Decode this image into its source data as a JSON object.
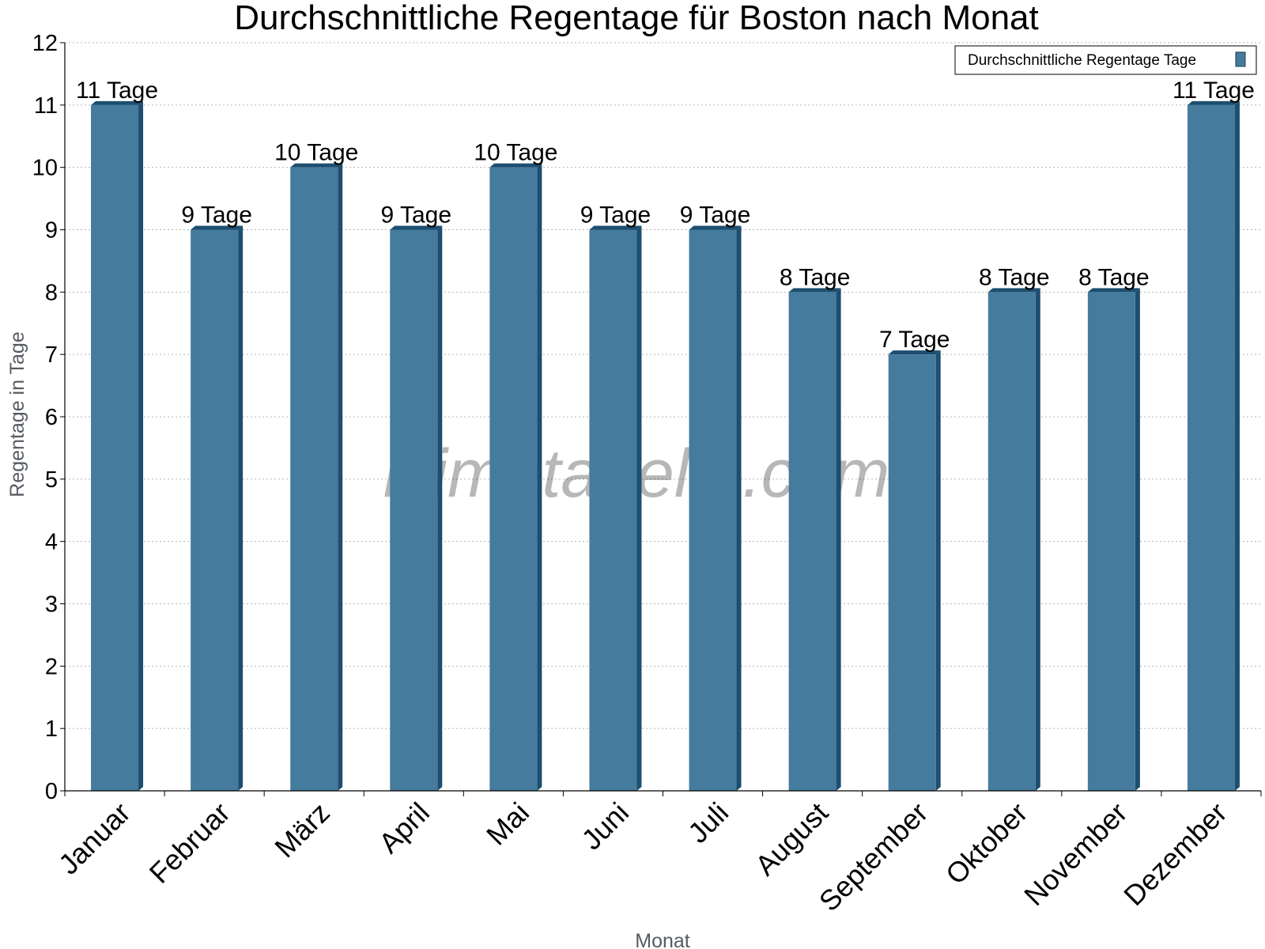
{
  "chart_data": {
    "type": "bar",
    "title": "Durchschnittliche Regentage für Boston nach Monat",
    "xlabel": "Monat",
    "ylabel": "Regentage in Tage",
    "categories": [
      "Januar",
      "Februar",
      "März",
      "April",
      "Mai",
      "Juni",
      "Juli",
      "August",
      "September",
      "Oktober",
      "November",
      "Dezember"
    ],
    "series": [
      {
        "name": "Durchschnittliche Regentage Tage",
        "values": [
          11,
          9,
          10,
          9,
          10,
          9,
          9,
          8,
          7,
          8,
          8,
          11
        ],
        "color": "#457b9d"
      }
    ],
    "data_labels": [
      "11 Tage",
      "9 Tage",
      "10 Tage",
      "9 Tage",
      "10 Tage",
      "9 Tage",
      "9 Tage",
      "8 Tage",
      "7 Tage",
      "8 Tage",
      "8 Tage",
      "11 Tage"
    ],
    "ylim": [
      0,
      12
    ],
    "yticks": [
      0,
      1,
      2,
      3,
      4,
      5,
      6,
      7,
      8,
      9,
      10,
      11,
      12
    ],
    "grid": true,
    "legend_position": "top-right"
  },
  "watermark": "klimatabelle.com",
  "colors": {
    "bar_front": "#457b9d",
    "bar_side": "#1d4e70",
    "grid": "#b5b5b5",
    "axis_label": "#555b63"
  }
}
